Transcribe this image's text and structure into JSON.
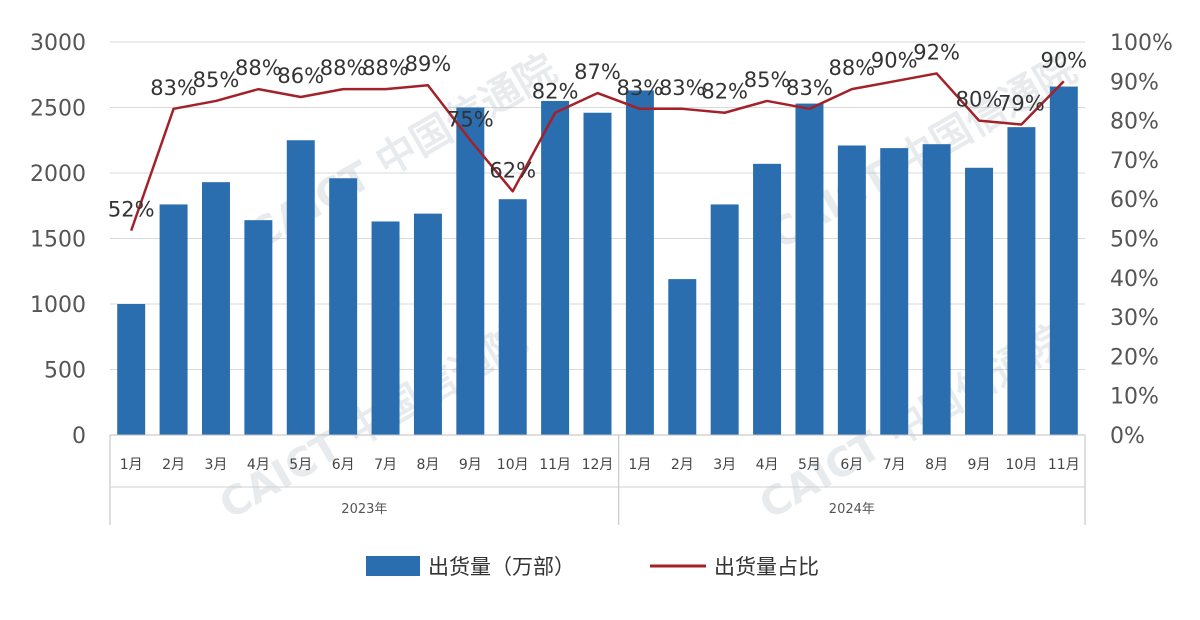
{
  "chart_data": {
    "type": "bar+line",
    "categories": [
      "1月",
      "2月",
      "3月",
      "4月",
      "5月",
      "6月",
      "7月",
      "8月",
      "9月",
      "10月",
      "11月",
      "12月",
      "1月",
      "2月",
      "3月",
      "4月",
      "5月",
      "6月",
      "7月",
      "8月",
      "9月",
      "10月",
      "11月"
    ],
    "groups": [
      {
        "label": "2023年",
        "start": 0,
        "end": 11
      },
      {
        "label": "2024年",
        "start": 12,
        "end": 22
      }
    ],
    "series": [
      {
        "name": "出货量（万部）",
        "type": "bar",
        "axis": "left",
        "color": "#2a6eb0",
        "values": [
          1000,
          1760,
          1930,
          1640,
          2250,
          1960,
          1630,
          1690,
          2500,
          1800,
          2550,
          2460,
          2630,
          1190,
          1760,
          2070,
          2530,
          2210,
          2190,
          2220,
          2040,
          2350,
          2660
        ]
      },
      {
        "name": "出货量占比",
        "type": "line",
        "axis": "right",
        "color": "#a3222a",
        "values": [
          52,
          83,
          85,
          88,
          86,
          88,
          88,
          89,
          75,
          62,
          82,
          87,
          83,
          83,
          82,
          85,
          83,
          88,
          90,
          92,
          80,
          79,
          90
        ],
        "labels": [
          "52%",
          "83%",
          "85%",
          "88%",
          "86%",
          "88%",
          "88%",
          "89%",
          "75%",
          "62%",
          "82%",
          "87%",
          "83%",
          "83%",
          "82%",
          "85%",
          "83%",
          "88%",
          "90%",
          "92%",
          "80%",
          "79%",
          "90%"
        ]
      }
    ],
    "left_axis": {
      "min": 0,
      "max": 3000,
      "ticks": [
        "0",
        "500",
        "1000",
        "1500",
        "2000",
        "2500",
        "3000"
      ]
    },
    "right_axis": {
      "min": 0,
      "max": 100,
      "ticks": [
        "0%",
        "10%",
        "20%",
        "30%",
        "40%",
        "50%",
        "60%",
        "70%",
        "80%",
        "90%",
        "100%"
      ]
    },
    "grid": true,
    "legend_position": "bottom",
    "legend": [
      "出货量（万部）",
      "出货量占比"
    ]
  },
  "watermark": {
    "logo_text": "CAICT 中国信通院"
  }
}
